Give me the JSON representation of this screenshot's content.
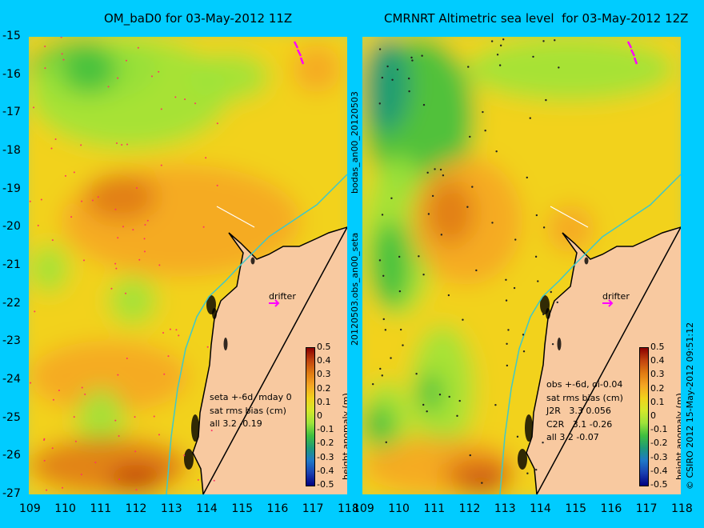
{
  "left_panel": {
    "title": "OM_baD0 for 03-May-2012 11Z",
    "stats": [
      "seta +-6d, mday 0",
      "sat rms bias (cm)",
      "all 3.2 -0.19"
    ],
    "drifter_label": "drifter"
  },
  "right_panel": {
    "title": "CMRNRT Altimetric sea level  for 03-May-2012 12Z",
    "stats": [
      "obs +-6d, oi-0.04",
      "sat rms bias (cm)",
      "J2R   3.3 0.056",
      "C2R   3.1 -0.26",
      "all 3.2 -0.07"
    ],
    "drifter_label": "drifter"
  },
  "middle_labels": [
    "bodas_an00_20120503",
    "20120503.obs_an00_seta"
  ],
  "credit": "© CSIRO 2012   15-May-2012 09:51:12",
  "axes": {
    "lat_ticks": [
      "-15",
      "-16",
      "-17",
      "-18",
      "-19",
      "-20",
      "-21",
      "-22",
      "-23",
      "-24",
      "-25",
      "-26",
      "-27"
    ],
    "lon_ticks": [
      "109",
      "110",
      "111",
      "112",
      "113",
      "114",
      "115",
      "116",
      "117",
      "118"
    ],
    "lon_range": [
      109,
      118
    ],
    "lat_range": [
      -27,
      -15
    ]
  },
  "colorbar": {
    "label": "height anomaly (m)",
    "ticks": [
      "0.5",
      "0.4",
      "0.3",
      "0.2",
      "0.1",
      "0",
      "-0.1",
      "-0.2",
      "-0.3",
      "-0.4",
      "-0.5"
    ],
    "colors": [
      "#8b0000",
      "#c1440e",
      "#e07b12",
      "#f5a623",
      "#f2d21b",
      "#d4e82a",
      "#9ee33a",
      "#3fbf3f",
      "#1e9a78",
      "#1f78c8",
      "#1a3fb0",
      "#000080"
    ]
  },
  "colors": {
    "background": "#00ccff",
    "land": "#f8c9a0",
    "coast": "#000000",
    "isobath": "#3fc8c8",
    "drifter_arrow": "#ff00ff"
  }
}
